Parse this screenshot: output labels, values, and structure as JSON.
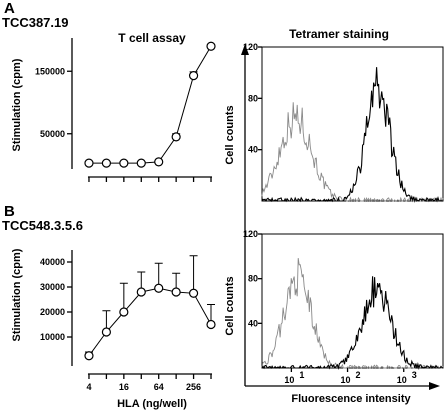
{
  "panel_labels": {
    "a": "A",
    "b": "B"
  },
  "clones": {
    "a": "TCC387.19",
    "b": "TCC548.3.5.6"
  },
  "titles": {
    "assay": "T cell assay",
    "tetramer": "Tetramer staining"
  },
  "axis_labels": {
    "stimulation": "Stimulation (cpm)",
    "hla": "HLA (ng/well)",
    "cell_counts": "Cell counts",
    "fluorescence": "Fluorescence intensity"
  },
  "chart_data": [
    {
      "id": "a-assay",
      "type": "line",
      "title": "T cell assay",
      "xlabel": "",
      "ylabel": "Stimulation (cpm)",
      "ylim": [
        0,
        200000
      ],
      "yticks": [
        50000,
        150000
      ],
      "ytick_labels": [
        "50000",
        "150000"
      ],
      "x": [
        4,
        8,
        16,
        32,
        64,
        128,
        256,
        512
      ],
      "xscale": "log2",
      "xlim": [
        2.8,
        600
      ],
      "series": [
        {
          "values": [
            3000,
            3000,
            3000,
            3000,
            5000,
            45000,
            143000,
            190000
          ],
          "errors": [
            0,
            0,
            0,
            0,
            0,
            5000,
            6000,
            0
          ]
        }
      ]
    },
    {
      "id": "b-assay",
      "type": "line",
      "xlabel": "HLA (ng/well)",
      "ylabel": "Stimulation (cpm)",
      "ylim": [
        0,
        44000
      ],
      "yticks": [
        10000,
        20000,
        30000,
        40000
      ],
      "ytick_labels": [
        "10000",
        "20000",
        "30000",
        "40000"
      ],
      "x": [
        4,
        8,
        16,
        32,
        64,
        128,
        256,
        512
      ],
      "xscale": "log2",
      "xlim": [
        2.8,
        600
      ],
      "xtick_labels": [
        "4",
        "16",
        "64",
        "256"
      ],
      "xtick_values": [
        4,
        16,
        64,
        256
      ],
      "series": [
        {
          "values": [
            2500,
            12000,
            20000,
            28000,
            29500,
            28000,
            27500,
            15000
          ],
          "errors": [
            1500,
            8500,
            11500,
            8000,
            10000,
            7500,
            15000,
            8000
          ]
        }
      ]
    },
    {
      "id": "a-tetramer",
      "type": "area",
      "xlabel": "",
      "ylabel": "Cell counts",
      "xscale": "log",
      "xlim": [
        3,
        5000
      ],
      "ylim": [
        0,
        120
      ],
      "yticks": [
        40,
        80,
        120
      ],
      "ytick_labels": [
        "40",
        "80",
        "120"
      ],
      "series": [
        {
          "style": "grey",
          "peak_x": 12,
          "peak_count": 72,
          "width_decades": 0.28
        },
        {
          "style": "black",
          "peak_x": 350,
          "peak_count": 96,
          "width_decades": 0.21
        }
      ]
    },
    {
      "id": "b-tetramer",
      "type": "area",
      "xlabel": "Fluorescence intensity",
      "ylabel": "Cell counts",
      "xscale": "log",
      "xlim": [
        3,
        5000
      ],
      "ylim": [
        0,
        120
      ],
      "yticks": [
        40,
        80,
        120
      ],
      "ytick_labels": [
        "40",
        "80",
        "120"
      ],
      "xtick_values": [
        10,
        100,
        1000
      ],
      "xtick_labels": [
        {
          "base": "10",
          "exp": "1"
        },
        {
          "base": "10",
          "exp": "2"
        },
        {
          "base": "10",
          "exp": "3"
        }
      ],
      "series": [
        {
          "style": "grey",
          "peak_x": 13,
          "peak_count": 90,
          "width_decades": 0.24
        },
        {
          "style": "black",
          "peak_x": 330,
          "peak_count": 78,
          "width_decades": 0.25
        }
      ]
    }
  ]
}
